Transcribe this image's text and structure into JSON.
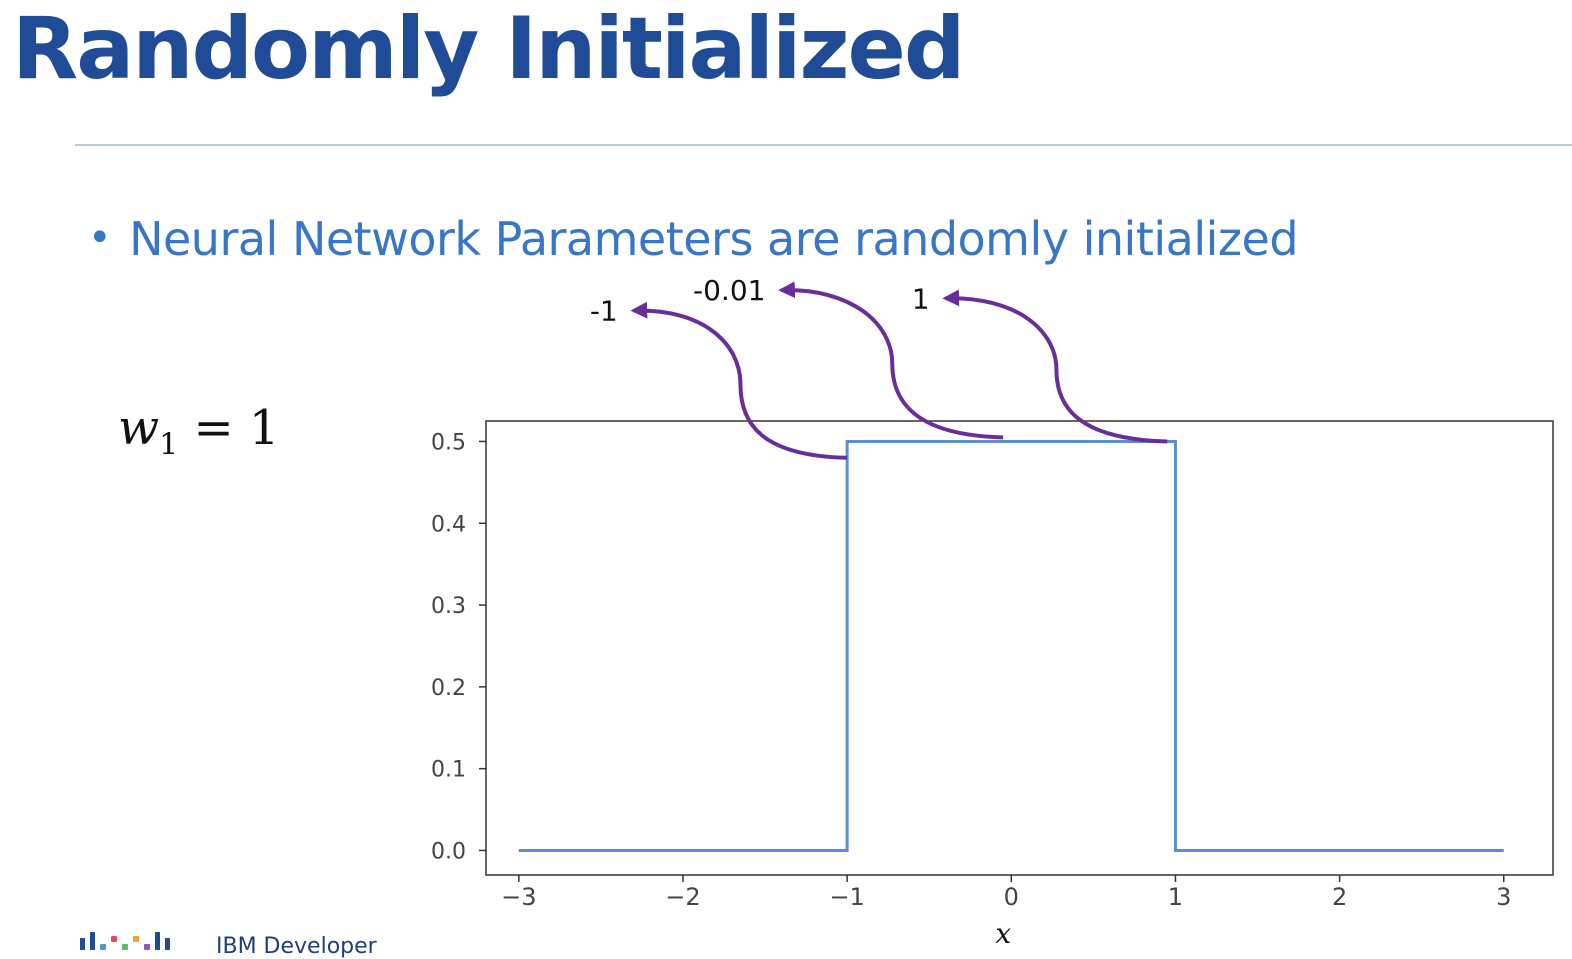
{
  "slide": {
    "title": "Randomly Initialized",
    "bullet": "Neural Network Parameters are randomly initialized",
    "formula": {
      "var": "w",
      "sub": "1",
      "rest": " = 1"
    },
    "footer_text": "IBM Developer"
  },
  "colors": {
    "title": "#1f4b97",
    "bullet": "#3876c8",
    "line": "#5b8fd0",
    "arrow": "#6a2e9a"
  },
  "chart_data": {
    "type": "line",
    "title": "",
    "xlabel": "x",
    "ylabel": "",
    "xlim": [
      -3.2,
      3.3
    ],
    "ylim": [
      -0.03,
      0.525
    ],
    "xticks": [
      -3,
      -2,
      -1,
      0,
      1,
      2,
      3
    ],
    "xtick_labels": [
      "−3",
      "−2",
      "−1",
      "0",
      "1",
      "2",
      "3"
    ],
    "yticks": [
      0.0,
      0.1,
      0.2,
      0.3,
      0.4,
      0.5
    ],
    "ytick_labels": [
      "0.0",
      "0.1",
      "0.2",
      "0.3",
      "0.4",
      "0.5"
    ],
    "grid": false,
    "series": [
      {
        "x": [
          -3,
          -1,
          -1,
          1,
          1,
          3
        ],
        "y": [
          0,
          0,
          0.5,
          0.5,
          0,
          0
        ]
      }
    ],
    "annotations": [
      {
        "text": "-1",
        "from": [
          -1.0,
          0.48
        ],
        "to": [
          -2.3,
          0.66
        ]
      },
      {
        "text": "-0.01",
        "from": [
          -0.05,
          0.505
        ],
        "to": [
          -1.4,
          0.685
        ]
      },
      {
        "text": "1",
        "from": [
          0.95,
          0.5
        ],
        "to": [
          -0.4,
          0.675
        ]
      }
    ]
  }
}
